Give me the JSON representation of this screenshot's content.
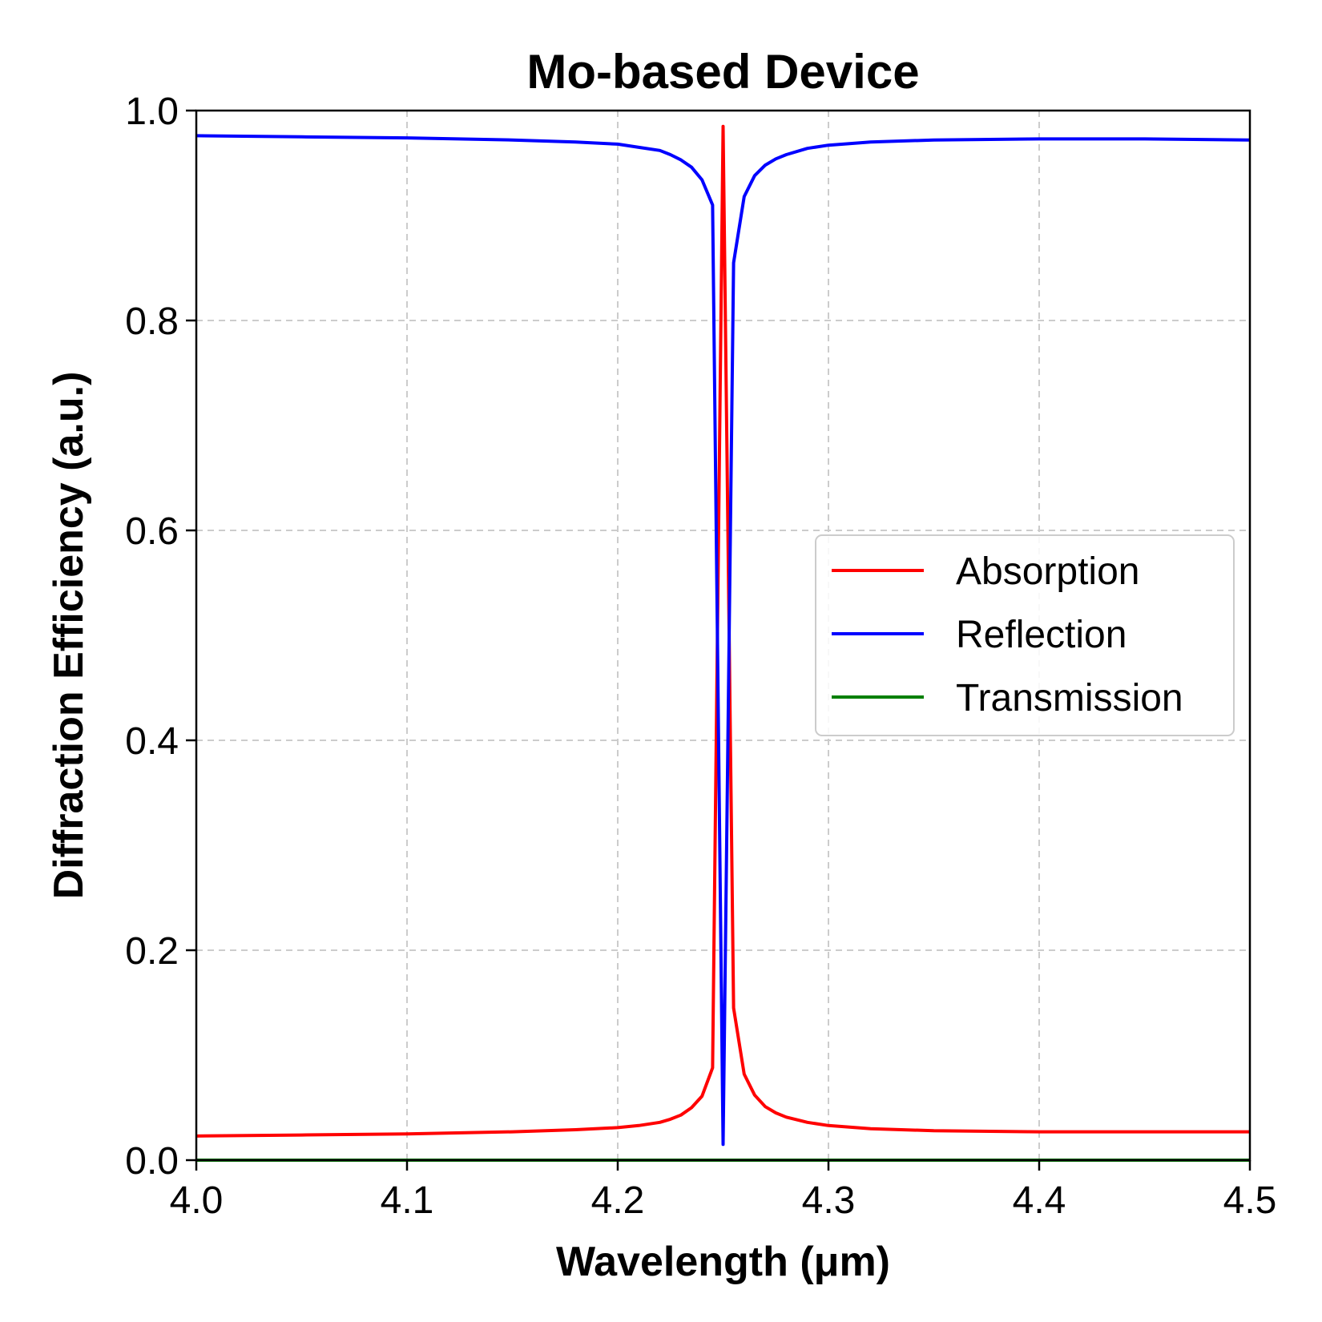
{
  "chart_data": {
    "type": "line",
    "title": "Mo-based Device",
    "xlabel": "Wavelength (μm)",
    "ylabel": "Diffraction Efficiency (a.u.)",
    "xlim": [
      4.0,
      4.5
    ],
    "ylim": [
      0.0,
      1.0
    ],
    "xticks": [
      "4.0",
      "4.1",
      "4.2",
      "4.3",
      "4.4",
      "4.5"
    ],
    "yticks": [
      "0.0",
      "0.2",
      "0.4",
      "0.6",
      "0.8",
      "1.0"
    ],
    "grid": true,
    "legend_position": "center-right",
    "series": [
      {
        "name": "Absorption",
        "color": "#ff0000",
        "x": [
          4.0,
          4.05,
          4.1,
          4.15,
          4.18,
          4.2,
          4.21,
          4.22,
          4.225,
          4.23,
          4.235,
          4.24,
          4.245,
          4.25,
          4.255,
          4.26,
          4.265,
          4.27,
          4.275,
          4.28,
          4.29,
          4.3,
          4.32,
          4.35,
          4.4,
          4.45,
          4.5
        ],
        "y": [
          0.023,
          0.024,
          0.025,
          0.027,
          0.029,
          0.031,
          0.033,
          0.036,
          0.039,
          0.043,
          0.05,
          0.061,
          0.088,
          0.985,
          0.145,
          0.082,
          0.062,
          0.051,
          0.045,
          0.041,
          0.036,
          0.033,
          0.03,
          0.028,
          0.027,
          0.027,
          0.027
        ]
      },
      {
        "name": "Reflection",
        "color": "#0000ff",
        "x": [
          4.0,
          4.05,
          4.1,
          4.15,
          4.18,
          4.2,
          4.21,
          4.22,
          4.225,
          4.23,
          4.235,
          4.24,
          4.245,
          4.25,
          4.255,
          4.26,
          4.265,
          4.27,
          4.275,
          4.28,
          4.29,
          4.3,
          4.32,
          4.35,
          4.4,
          4.45,
          4.5
        ],
        "y": [
          0.976,
          0.975,
          0.974,
          0.972,
          0.97,
          0.968,
          0.965,
          0.962,
          0.958,
          0.953,
          0.946,
          0.934,
          0.91,
          0.015,
          0.855,
          0.918,
          0.938,
          0.948,
          0.954,
          0.958,
          0.964,
          0.967,
          0.97,
          0.972,
          0.973,
          0.973,
          0.972
        ]
      },
      {
        "name": "Transmission",
        "color": "#008000",
        "x": [
          4.0,
          4.5
        ],
        "y": [
          0.0,
          0.0
        ]
      }
    ]
  }
}
